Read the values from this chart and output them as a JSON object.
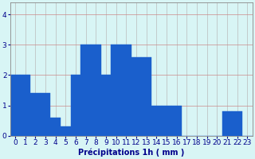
{
  "values": [
    2,
    2,
    1.4,
    1.4,
    0.6,
    0.3,
    2,
    3,
    3,
    2,
    3,
    3,
    2.6,
    2.6,
    1,
    1,
    1,
    0,
    0,
    0,
    0,
    0.8,
    0.8,
    0
  ],
  "bar_color": "#1A5FCC",
  "bar_edge_color": "#1A5FCC",
  "background_color": "#D8F5F5",
  "grid_color": "#BBBBBB",
  "xlabel": "Précipitations 1h ( mm )",
  "ylim": [
    0,
    4.4
  ],
  "yticks": [
    0,
    1,
    2,
    3,
    4
  ],
  "num_bars": 24,
  "text_color": "#00008B",
  "axis_color": "#888888",
  "fontsize_xlabel": 7,
  "fontsize_ticks": 6.5
}
